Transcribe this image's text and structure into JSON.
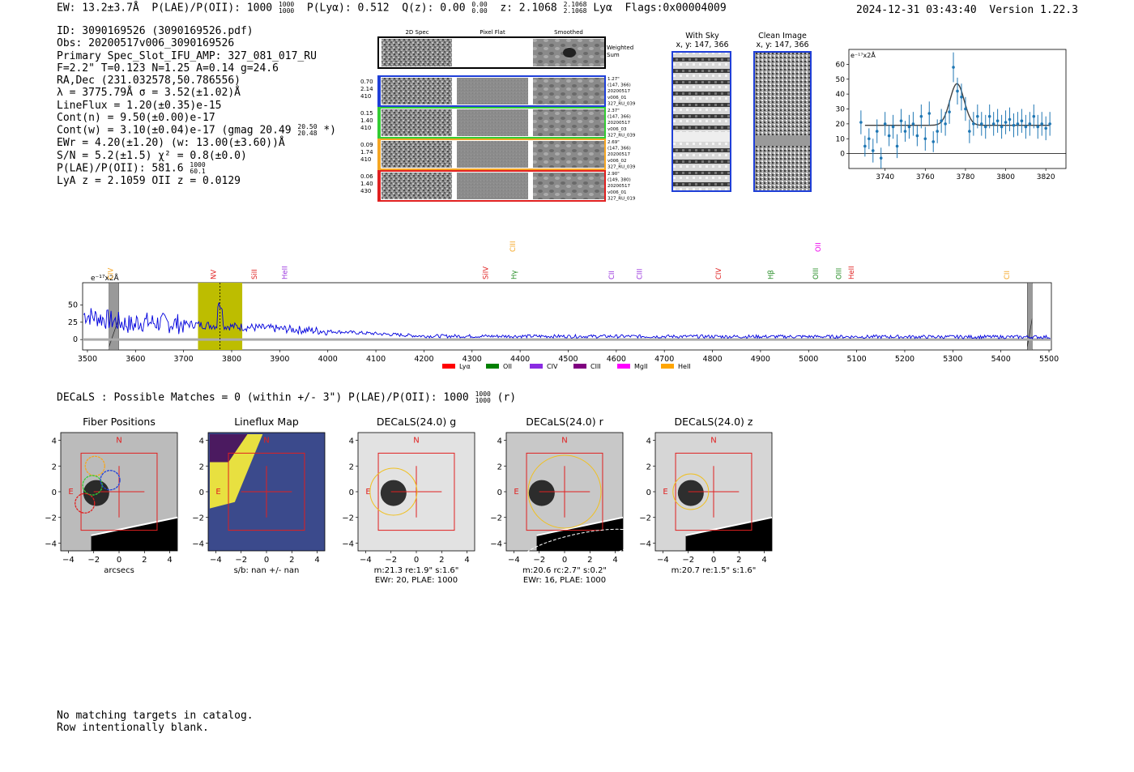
{
  "header": {
    "ew": "EW: 13.2±3.7Å",
    "plae_label": "P(LAE)/P(OII): 1000",
    "plae_hi": "1000",
    "plae_lo": "1000",
    "plya": "P(Lyα): 0.512",
    "qz_label": "Q(z): 0.00",
    "qz_hi": "0.00",
    "qz_lo": "0.00",
    "z_label": "z: 2.1068",
    "z_hi": "2.1068",
    "z_lo": "2.1068",
    "line": "Lyα",
    "flags": "Flags:0x00004009",
    "timestamp": "2024-12-31 03:43:40",
    "version": "Version 1.22.3"
  },
  "info": {
    "id": "ID: 3090169526 (3090169526.pdf)",
    "obs": "Obs: 20200517v006_3090169526",
    "primary": "Primary Spec_Slot_IFU_AMP: 327_081_017_RU",
    "params": "F=2.2\"  T=0.123  N=1.25  A=0.14  g=24.6",
    "radec": "RA,Dec (231.032578,50.786556)",
    "lambda": "λ = 3775.79Å   σ = 3.52(±1.02)Å",
    "lineflux": "LineFlux = 1.20(±0.35)e-15",
    "contn": "Cont(n) = 9.50(±0.00)e-17",
    "contw_pre": "Cont(w) = 3.10(±0.04)e-17 (gmag 20.49",
    "contw_hi": "20.50",
    "contw_lo": "20.48",
    "contw_post": "*)",
    "ewr": "EWr = 4.20(±1.20) (w: 13.00(±3.60))Å",
    "sn": "S/N = 5.2(±1.5)  χ² = 0.8(±0.0)",
    "plae_pre": "P(LAE)/P(OII): 581.6",
    "plae_hi": "1000",
    "plae_lo": "60.1",
    "lya": "LyA z = 2.1059  OII z = 0.0129"
  },
  "cutouts": {
    "col_2d": "2D Spec",
    "col_flat": "Pixel Flat",
    "col_smooth": "Smoothed",
    "weighted": "Weighted",
    "sum": "Sum",
    "rows": [
      {
        "color": "#1f3fd8",
        "v1": "0.70",
        "v2": "2.14",
        "v3": "410",
        "n1": "1.27\"",
        "n2": "(147, 366)",
        "n3": "20200517",
        "n4": "v006_01",
        "n5": "327_RU_039"
      },
      {
        "color": "#33cc33",
        "v1": "0.15",
        "v2": "1.40",
        "v3": "410",
        "n1": "2.37\"",
        "n2": "(147, 366)",
        "n3": "20200517",
        "n4": "v006_03",
        "n5": "327_RU_039"
      },
      {
        "color": "#f5a623",
        "v1": "0.09",
        "v2": "1.74",
        "v3": "410",
        "n1": "2.69\"",
        "n2": "(147, 366)",
        "n3": "20200517",
        "n4": "v006_02",
        "n5": "327_RU_039"
      },
      {
        "color": "#e02020",
        "v1": "0.06",
        "v2": "1.40",
        "v3": "430",
        "n1": "2.90\"",
        "n2": "(149, 380)",
        "n3": "20200517",
        "n4": "v006_01",
        "n5": "327_RU_019"
      }
    ]
  },
  "skypanels": {
    "withsky": "With Sky",
    "withsky_xy": "x, y: 147, 366",
    "clean": "Clean Image",
    "clean_xy": "x, y: 147, 366"
  },
  "colors": {
    "data": "#1f77b4",
    "fit": "#404040",
    "spec": "#0000dd",
    "highlight": "#bdbd00",
    "redbox": "#e02020",
    "yellow": "#f0c020"
  },
  "chart_data": [
    {
      "type": "scatter",
      "title": "",
      "ylabel_unit": "e⁻¹⁷x2Å",
      "xlim": [
        3722,
        3830
      ],
      "ylim": [
        -10,
        70
      ],
      "xticks": [
        "3740",
        "3760",
        "3780",
        "3800",
        "3820"
      ],
      "xtick_values": [
        3740,
        3760,
        3780,
        3800,
        3820
      ],
      "yticks": [
        "0",
        "10",
        "20",
        "30",
        "40",
        "50",
        "60"
      ],
      "ytick_values": [
        0,
        10,
        20,
        30,
        40,
        50,
        60
      ],
      "x": [
        3728,
        3730,
        3732,
        3734,
        3736,
        3738,
        3740,
        3742,
        3744,
        3746,
        3748,
        3750,
        3752,
        3754,
        3756,
        3758,
        3760,
        3762,
        3764,
        3766,
        3768,
        3770,
        3772,
        3774,
        3776,
        3778,
        3780,
        3782,
        3784,
        3786,
        3788,
        3790,
        3792,
        3794,
        3796,
        3798,
        3800,
        3802,
        3804,
        3806,
        3808,
        3810,
        3812,
        3814,
        3816,
        3818,
        3820,
        3822
      ],
      "y": [
        21,
        5,
        10,
        2,
        15,
        -3,
        20,
        12,
        18,
        5,
        22,
        15,
        18,
        20,
        12,
        25,
        10,
        27,
        8,
        15,
        22,
        20,
        28,
        58,
        42,
        38,
        30,
        15,
        20,
        25,
        20,
        18,
        25,
        20,
        22,
        18,
        21,
        23,
        19,
        20,
        22,
        18,
        20,
        25,
        18,
        20,
        17,
        20
      ],
      "err": [
        8,
        7,
        7,
        8,
        8,
        7,
        8,
        7,
        8,
        8,
        8,
        7,
        8,
        8,
        7,
        8,
        8,
        8,
        7,
        8,
        8,
        8,
        8,
        10,
        9,
        9,
        8,
        8,
        8,
        8,
        8,
        8,
        8,
        8,
        8,
        8,
        8,
        8,
        8,
        8,
        8,
        8,
        8,
        8,
        8,
        8,
        8,
        8
      ],
      "fit": {
        "baseline": 19,
        "amp": 28,
        "center": 3775.8,
        "sigma": 3.52,
        "x_start": 3730,
        "x_end": 3822
      }
    },
    {
      "type": "line",
      "title": "",
      "ylabel_unit": "e⁻¹⁷x2Å",
      "xlim": [
        3490,
        5505
      ],
      "ylim": [
        -15,
        82
      ],
      "xticks": [
        "3500",
        "3600",
        "3700",
        "3800",
        "3900",
        "4000",
        "4100",
        "4200",
        "4300",
        "4400",
        "4500",
        "4600",
        "4700",
        "4800",
        "4900",
        "5000",
        "5100",
        "5200",
        "5300",
        "5400",
        "5500"
      ],
      "xtick_values": [
        3500,
        3600,
        3700,
        3800,
        3900,
        4000,
        4100,
        4200,
        4300,
        4400,
        4500,
        4600,
        4700,
        4800,
        4900,
        5000,
        5100,
        5200,
        5300,
        5400,
        5500
      ],
      "yticks": [
        "0",
        "25",
        "50"
      ],
      "ytick_values": [
        0,
        25,
        50
      ],
      "highlight_range": [
        3730,
        3822
      ],
      "line_center": 3775.8,
      "masked": [
        [
          3545,
          3565
        ],
        [
          5455,
          5465
        ]
      ],
      "line_markers": [
        {
          "label": "CIV",
          "x": 3553,
          "color": "#f5a623",
          "level": 1
        },
        {
          "label": "NV",
          "x": 3767,
          "color": "#e02020",
          "level": 1
        },
        {
          "label": "SiII",
          "x": 3852,
          "color": "#e02020",
          "level": 1
        },
        {
          "label": "HeII",
          "x": 3915,
          "color": "#9933dd",
          "level": 1
        },
        {
          "label": "SiIV",
          "x": 4333,
          "color": "#e02020",
          "level": 1
        },
        {
          "label": "CIII",
          "x": 4390,
          "color": "#f5a623",
          "level": 0
        },
        {
          "label": "Hγ",
          "x": 4392,
          "color": "#228B22",
          "level": 1
        },
        {
          "label": "CII",
          "x": 4595,
          "color": "#9933dd",
          "level": 1
        },
        {
          "label": "CIII",
          "x": 4653,
          "color": "#9933dd",
          "level": 1
        },
        {
          "label": "CIV",
          "x": 4818,
          "color": "#e02020",
          "level": 1
        },
        {
          "label": "Hβ",
          "x": 4926,
          "color": "#228B22",
          "level": 1
        },
        {
          "label": "OII",
          "x": 5025,
          "color": "#ee00ee",
          "level": 0
        },
        {
          "label": "OIII",
          "x": 5020,
          "color": "#228B22",
          "level": 1
        },
        {
          "label": "OIII",
          "x": 5068,
          "color": "#228B22",
          "level": 1
        },
        {
          "label": "HeII",
          "x": 5094,
          "color": "#e02020",
          "level": 1
        },
        {
          "label": "CII",
          "x": 5417,
          "color": "#f5a623",
          "level": 1
        }
      ],
      "legend": [
        {
          "label": "Lyα",
          "color": "#ff0000"
        },
        {
          "label": "OII",
          "color": "#008000"
        },
        {
          "label": "CIV",
          "color": "#8a2be2"
        },
        {
          "label": "CIII",
          "color": "#800080"
        },
        {
          "label": "MgII",
          "color": "#ff00ff"
        },
        {
          "label": "HeII",
          "color": "#ffa500"
        }
      ]
    }
  ],
  "decals": {
    "summary_pre": "DECaLS : Possible Matches = 0 (within +/- 3\")  P(LAE)/P(OII): 1000",
    "summary_hi": "1000",
    "summary_lo": "1000",
    "summary_post": "(r)",
    "ticks": [
      "−4",
      "−2",
      "0",
      "2",
      "4"
    ],
    "tick_values": [
      -4,
      -2,
      0,
      2,
      4
    ],
    "north": "N",
    "east": "E",
    "panels": [
      {
        "title": "Fiber Positions",
        "cap1": "arcsecs",
        "cap2": "",
        "cap3": ""
      },
      {
        "title": "Lineflux Map",
        "cap1": "s/b: nan +/- nan",
        "cap2": "",
        "cap3": ""
      },
      {
        "title": "DECaLS(24.0) g",
        "cap1": "m:21.3  re:1.9\"  s:1.6\"",
        "cap2": "EWr: 20, PLAE: 1000",
        "cap3": ""
      },
      {
        "title": "DECaLS(24.0) r",
        "cap1": "m:20.6 rc:2.7\"  s:0.2\"",
        "cap2": "EWr: 16, PLAE: 1000",
        "cap3": ""
      },
      {
        "title": "DECaLS(24.0) z",
        "cap1": "m:20.7  re:1.5\"  s:1.6\"",
        "cap2": "",
        "cap3": ""
      }
    ]
  },
  "footer": {
    "line1": "No matching targets in catalog.",
    "line2": "Row intentionally blank."
  }
}
